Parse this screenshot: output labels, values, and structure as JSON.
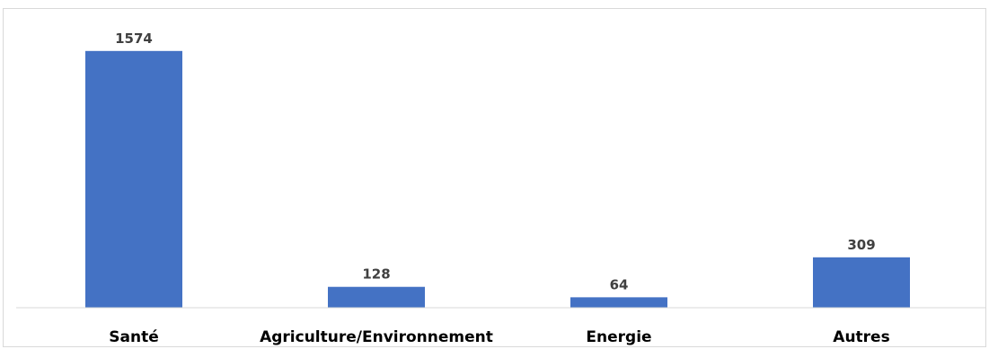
{
  "chart_data": {
    "type": "bar",
    "categories": [
      "Santé",
      "Agriculture/Environnement",
      "Energie",
      "Autres"
    ],
    "values": [
      1574,
      128,
      64,
      309
    ],
    "title": "",
    "xlabel": "",
    "ylabel": "",
    "ylim": [
      0,
      1650
    ],
    "grid": false,
    "legend": "none",
    "data_labels": true,
    "bar_color": "#4472C4",
    "axis_color": "#d9d9d9"
  }
}
